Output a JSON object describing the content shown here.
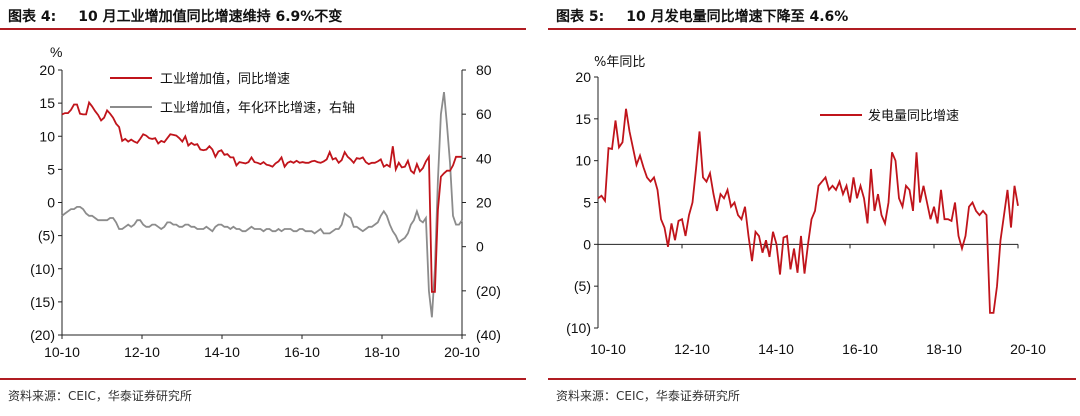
{
  "left": {
    "figure_label": "图表 4:",
    "title": "10 月工业增加值同比增速维持 6.9%不变",
    "source": "资料来源：CEIC，华泰证券研究所",
    "colors": {
      "series1": "#c0141b",
      "series2": "#8c8c8c",
      "rule": "#b01c22"
    },
    "chart_data": {
      "type": "line",
      "ylabel": "%",
      "ylim": [
        -20,
        20
      ],
      "y2lim": [
        -40,
        80
      ],
      "yticks": [
        "20",
        "15",
        "10",
        "5",
        "0",
        "(5)",
        "(10)",
        "(15)",
        "(20)"
      ],
      "y2ticks": [
        "80",
        "60",
        "40",
        "20",
        "0",
        "(20)",
        "(40)"
      ],
      "xticks": [
        "10-10",
        "12-10",
        "14-10",
        "16-10",
        "18-10",
        "20-10"
      ],
      "x_start": "2010-10",
      "x_end": "2020-10",
      "legend_position": "top-center",
      "series": [
        {
          "name": "工业增加值，同比增速",
          "axis": "left",
          "color": "#c0141b",
          "values": [
            13.3,
            13.5,
            13.5,
            14.0,
            14.8,
            14.8,
            13.4,
            13.3,
            13.3,
            15.1,
            14.5,
            13.8,
            13.2,
            12.4,
            12.8,
            13.9,
            13.4,
            12.8,
            11.9,
            11.4,
            9.3,
            9.6,
            9.2,
            9.5,
            9.2,
            9.0,
            9.6,
            10.3,
            10.1,
            9.7,
            9.6,
            9.7,
            8.9,
            9.3,
            9.1,
            9.7,
            10.3,
            10.2,
            10.1,
            9.7,
            9.2,
            10.0,
            8.6,
            9.0,
            8.7,
            8.8,
            8.0,
            7.9,
            8.0,
            8.5,
            8.0,
            6.9,
            7.7,
            7.9,
            7.2,
            7.3,
            6.8,
            6.8,
            5.6,
            6.1,
            6.0,
            5.9,
            6.1,
            6.8,
            6.1,
            6.0,
            5.8,
            6.1,
            5.7,
            5.6,
            5.4,
            5.9,
            6.2,
            6.8,
            5.4,
            6.0,
            6.2,
            6.0,
            6.3,
            6.0,
            6.1,
            6.0,
            6.0,
            6.2,
            6.3,
            6.1,
            6.0,
            6.2,
            6.5,
            7.6,
            6.5,
            6.7,
            6.0,
            6.4,
            7.6,
            6.9,
            6.5,
            6.0,
            6.7,
            6.6,
            6.8,
            6.1,
            5.8,
            6.0,
            6.0,
            6.2,
            6.5,
            5.4,
            5.7,
            5.4,
            8.5,
            5.0,
            6.0,
            5.3,
            5.4,
            6.3,
            4.8,
            4.4,
            5.8,
            4.7,
            5.2,
            6.2,
            6.9,
            -13.5,
            -13.5,
            -1.1,
            3.9,
            4.4,
            4.8,
            4.8,
            5.6,
            6.9,
            6.9,
            6.9
          ]
        },
        {
          "name": "工业增加值，年化环比增速，右轴",
          "axis": "right",
          "color": "#8c8c8c",
          "values": [
            14,
            15,
            16,
            17,
            17,
            18,
            18,
            17,
            15,
            14,
            14,
            13,
            12,
            12,
            12,
            12,
            13,
            13,
            11,
            8,
            8,
            9,
            10,
            9,
            10,
            12,
            12,
            10,
            9,
            9,
            10,
            10,
            9,
            8,
            9,
            11,
            11,
            10,
            10,
            9,
            9,
            10,
            10,
            9,
            9,
            8,
            8,
            8,
            9,
            8,
            7,
            9,
            10,
            10,
            9,
            9,
            8,
            9,
            8,
            8,
            7,
            7,
            8,
            9,
            8,
            8,
            8,
            7,
            8,
            8,
            7,
            7,
            8,
            7,
            8,
            8,
            8,
            7,
            7,
            8,
            8,
            7,
            7,
            7,
            6,
            7,
            8,
            6,
            6,
            6,
            7,
            8,
            8,
            10,
            15,
            14,
            13,
            9,
            9,
            8,
            7,
            8,
            9,
            9,
            10,
            11,
            14,
            16,
            14,
            10,
            7,
            5,
            2,
            3,
            4,
            6,
            10,
            12,
            16,
            12,
            11,
            13,
            -20,
            -32,
            -10,
            30,
            60,
            70,
            55,
            38,
            14,
            10,
            10,
            12
          ]
        }
      ]
    }
  },
  "right": {
    "figure_label": "图表 5:",
    "title": "10 月发电量同比增速下降至 4.6%",
    "source": "资料来源：CEIC，华泰证券研究所",
    "colors": {
      "series1": "#c0141b",
      "rule": "#b01c22"
    },
    "chart_data": {
      "type": "line",
      "ylabel": "%年同比",
      "ylim": [
        -10,
        20
      ],
      "yticks": [
        "20",
        "15",
        "10",
        "5",
        "0",
        "(5)",
        "(10)"
      ],
      "xticks": [
        "10-10",
        "12-10",
        "14-10",
        "16-10",
        "18-10",
        "20-10"
      ],
      "x_start": "2010-10",
      "x_end": "2020-10",
      "legend_position": "top-center",
      "series": [
        {
          "name": "发电量同比增速",
          "color": "#c0141b",
          "values": [
            5.5,
            5.8,
            5.2,
            11.5,
            11.4,
            14.8,
            11.6,
            12.2,
            16.2,
            13.5,
            11.5,
            9.5,
            10.6,
            9.2,
            8.0,
            7.5,
            8.0,
            6.5,
            3.0,
            2.0,
            -0.3,
            2.5,
            0.5,
            2.8,
            3.0,
            1.0,
            3.5,
            5.0,
            9.0,
            13.5,
            8.0,
            7.5,
            8.5,
            6.0,
            4.0,
            6.0,
            5.5,
            6.5,
            4.5,
            5.0,
            3.5,
            3.0,
            4.5,
            1.0,
            -2.0,
            1.5,
            1.0,
            -1.0,
            0.5,
            -1.5,
            1.5,
            0.0,
            -3.6,
            0.8,
            1.0,
            -3.0,
            -0.5,
            -3.4,
            1.0,
            -3.5,
            0.0,
            3.0,
            4.0,
            7.0,
            7.5,
            8.0,
            6.5,
            7.0,
            6.5,
            7.5,
            6.0,
            7.0,
            5.0,
            8.0,
            5.5,
            7.0,
            5.5,
            2.5,
            9.0,
            4.0,
            6.0,
            3.5,
            2.5,
            5.0,
            11.0,
            10.0,
            5.5,
            4.5,
            7.0,
            6.5,
            4.0,
            11.0,
            5.0,
            7.0,
            5.0,
            3.0,
            4.5,
            2.5,
            6.5,
            3.0,
            3.0,
            2.8,
            5.0,
            1.0,
            -0.5,
            1.0,
            4.5,
            5.0,
            4.0,
            3.5,
            4.0,
            3.5,
            -8.2,
            -8.2,
            -5.0,
            0.5,
            3.5,
            6.5,
            2.0,
            7.0,
            4.6
          ]
        }
      ]
    }
  }
}
